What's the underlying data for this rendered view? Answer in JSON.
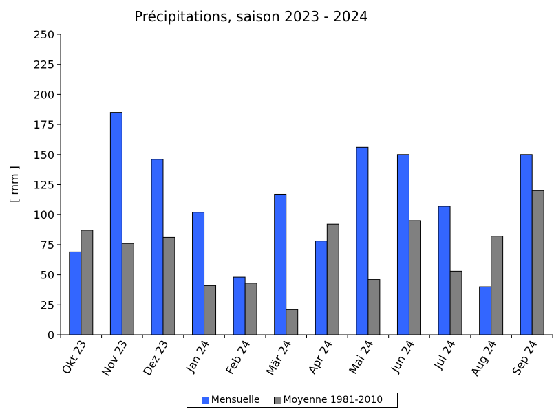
{
  "chart_data": {
    "type": "bar",
    "title": "Précipitations, saison 2023 - 2024",
    "xlabel": "",
    "ylabel": "[ mm ]",
    "ylim": [
      0,
      250
    ],
    "yticks": [
      0,
      25,
      50,
      75,
      100,
      125,
      150,
      175,
      200,
      225,
      250
    ],
    "categories": [
      "Okt 23",
      "Nov 23",
      "Dez 23",
      "Jan 24",
      "Feb 24",
      "Mär 24",
      "Apr 24",
      "Mai 24",
      "Jun 24",
      "Jul 24",
      "Aug 24",
      "Sep 24"
    ],
    "series": [
      {
        "name": "Mensuelle",
        "color": "#3366ff",
        "values": [
          69,
          185,
          146,
          102,
          48,
          117,
          78,
          156,
          150,
          107,
          40,
          150
        ]
      },
      {
        "name": "Moyenne 1981-2010",
        "color": "#808080",
        "values": [
          87,
          76,
          81,
          41,
          43,
          21,
          92,
          46,
          95,
          53,
          82,
          120
        ]
      }
    ],
    "grid": false,
    "legend_position": "bottom"
  }
}
